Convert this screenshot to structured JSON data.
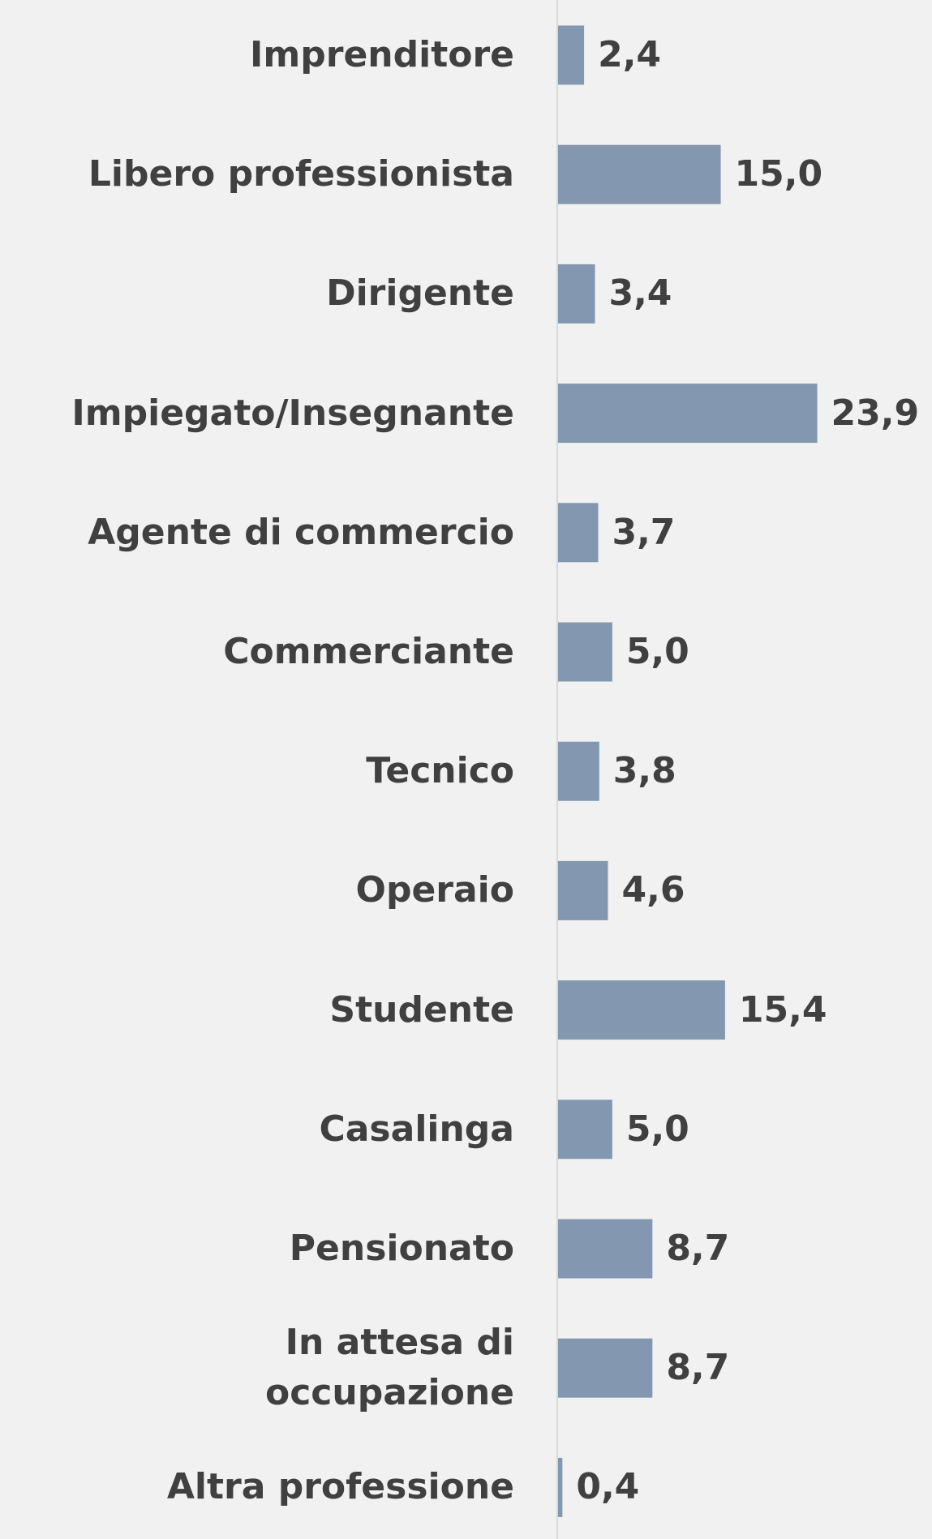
{
  "chart_data": {
    "type": "hbar",
    "categories": [
      "Imprenditore",
      "Libero professionista",
      "Dirigente",
      "Impiegato/Insegnante",
      "Agente di commercio",
      "Commerciante",
      "Tecnico",
      "Operaio",
      "Studente",
      "Casalinga",
      "Pensionato",
      "In attesa di occupazione",
      "Altra professione"
    ],
    "values": [
      2.4,
      15.0,
      3.4,
      23.9,
      3.7,
      5.0,
      3.8,
      4.6,
      15.4,
      5.0,
      8.7,
      8.7,
      0.4
    ],
    "value_labels": [
      "2,4",
      "15,0",
      "3,4",
      "23,9",
      "3,7",
      "5,0",
      "3,8",
      "4,6",
      "15,4",
      "5,0",
      "8,7",
      "8,7",
      "0,4"
    ],
    "color": "#8497b0"
  }
}
